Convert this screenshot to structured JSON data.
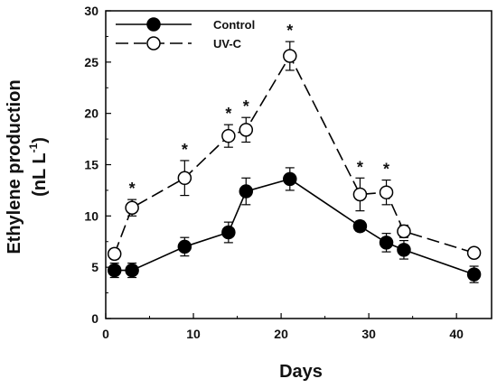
{
  "chart_data": {
    "type": "line",
    "xlabel": "Days",
    "ylabel_line1": "Ethylene production",
    "ylabel_line2": "(nL L",
    "ylabel_sup": "-1",
    "ylabel_close": ")",
    "xlim": [
      0,
      44
    ],
    "ylim": [
      0,
      30
    ],
    "x_ticks": [
      0,
      10,
      20,
      30,
      40
    ],
    "y_ticks": [
      0,
      5,
      10,
      15,
      20,
      25,
      30
    ],
    "legend_position": "top-left",
    "grid": false,
    "significance_marker": "*",
    "series": [
      {
        "name": "Control",
        "marker": "filled-circle",
        "line_style": "solid",
        "color": "#000000",
        "points": [
          {
            "x": 1,
            "y": 4.7,
            "err": 0.7
          },
          {
            "x": 3,
            "y": 4.7,
            "err": 0.7
          },
          {
            "x": 9,
            "y": 7.0,
            "err": 0.9
          },
          {
            "x": 14,
            "y": 8.4,
            "err": 1.0
          },
          {
            "x": 16,
            "y": 12.4,
            "err": 1.3
          },
          {
            "x": 21,
            "y": 13.6,
            "err": 1.1
          },
          {
            "x": 29,
            "y": 9.0,
            "err": 0.5
          },
          {
            "x": 32,
            "y": 7.4,
            "err": 0.9
          },
          {
            "x": 34,
            "y": 6.7,
            "err": 0.9
          },
          {
            "x": 42,
            "y": 4.3,
            "err": 0.8
          }
        ]
      },
      {
        "name": "UV-C",
        "marker": "open-circle",
        "line_style": "dashed",
        "color": "#000000",
        "points": [
          {
            "x": 1,
            "y": 6.3,
            "err": 0.5,
            "sig": false
          },
          {
            "x": 3,
            "y": 10.8,
            "err": 0.8,
            "sig": true
          },
          {
            "x": 9,
            "y": 13.7,
            "err": 1.7,
            "sig": true
          },
          {
            "x": 14,
            "y": 17.8,
            "err": 1.1,
            "sig": true
          },
          {
            "x": 16,
            "y": 18.4,
            "err": 1.2,
            "sig": true
          },
          {
            "x": 21,
            "y": 25.6,
            "err": 1.4,
            "sig": true
          },
          {
            "x": 29,
            "y": 12.1,
            "err": 1.6,
            "sig": true
          },
          {
            "x": 32,
            "y": 12.3,
            "err": 1.2,
            "sig": true
          },
          {
            "x": 34,
            "y": 8.5,
            "err": 0.6,
            "sig": false
          },
          {
            "x": 42,
            "y": 6.4,
            "err": 0.3,
            "sig": false
          }
        ]
      }
    ]
  }
}
